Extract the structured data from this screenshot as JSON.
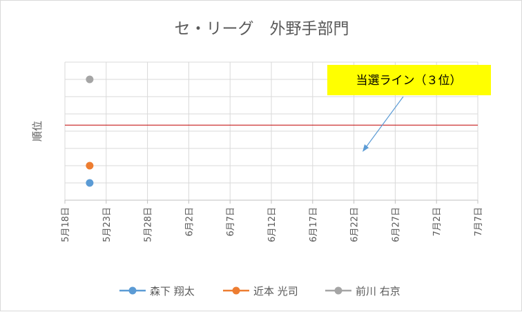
{
  "chart_data": {
    "type": "scatter",
    "title": "セ・リーグ　外野手部門",
    "ylabel": "順位",
    "xlabel": "",
    "x_tick_labels": [
      "5月18日",
      "5月23日",
      "5月28日",
      "6月2日",
      "6月7日",
      "6月12日",
      "6月17日",
      "6月22日",
      "6月27日",
      "7月2日",
      "7月7日"
    ],
    "xlim": [
      "5月18日",
      "7月7日"
    ],
    "ylim": [
      0,
      8
    ],
    "y_reversed": true,
    "grid": true,
    "legend_position": "bottom",
    "series": [
      {
        "name": "森下 翔太",
        "color": "#5b9bd5",
        "points": [
          {
            "x": "5月21日",
            "y": 7
          }
        ]
      },
      {
        "name": "近本 光司",
        "color": "#ed7d31",
        "points": [
          {
            "x": "5月21日",
            "y": 6
          }
        ]
      },
      {
        "name": "前川 右京",
        "color": "#a5a5a5",
        "points": [
          {
            "x": "5月21日",
            "y": 1
          }
        ]
      }
    ],
    "reference_line": {
      "y": 3.65,
      "color": "#c00000"
    },
    "annotation": {
      "text": "当選ライン（３位）",
      "background": "#ffff00",
      "arrow_color": "#5b9bd5"
    }
  }
}
